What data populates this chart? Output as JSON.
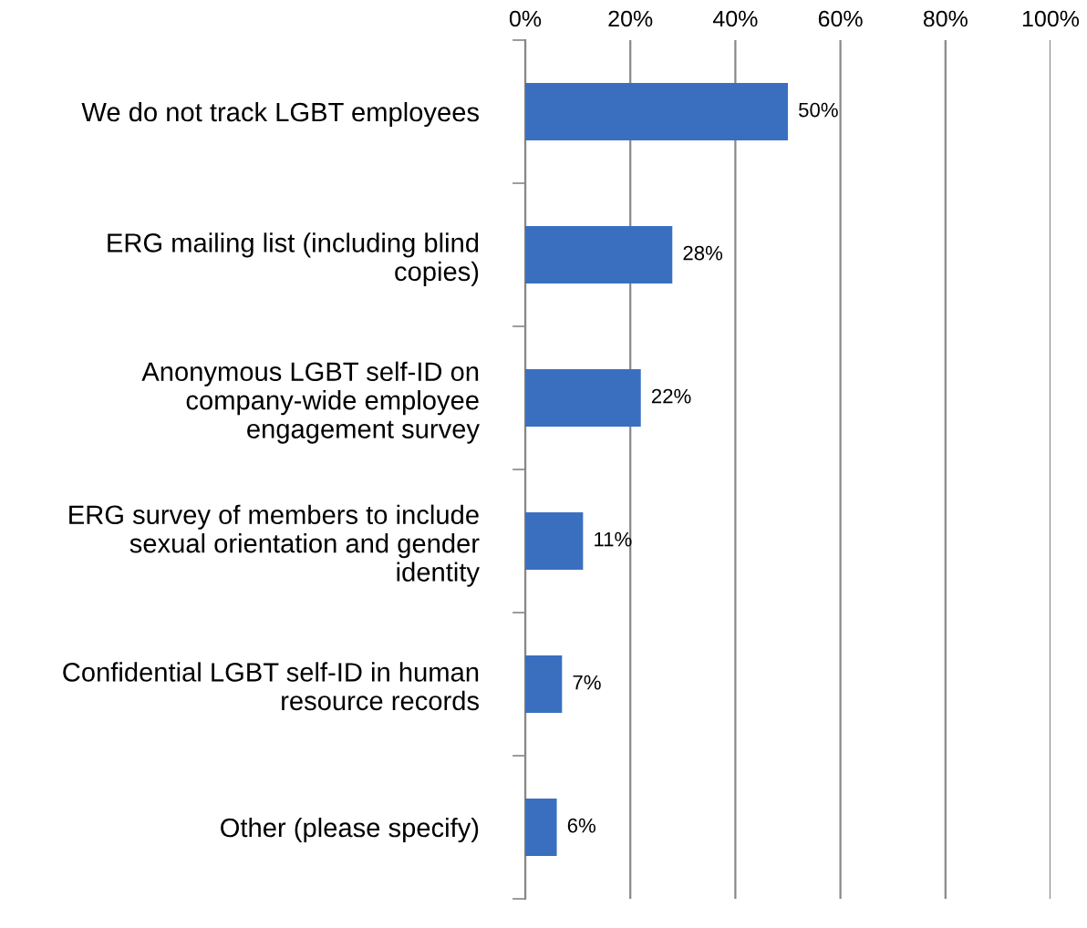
{
  "chart_data": {
    "type": "bar",
    "orientation": "horizontal",
    "categories": [
      "We do not track LGBT employees",
      "ERG mailing list (including blind\ncopies)",
      "Anonymous LGBT self-ID on\ncompany-wide employee\nengagement survey",
      "ERG survey of members to include\nsexual orientation and gender\nidentity",
      "Confidential LGBT self-ID in human\nresource records",
      "Other (please specify)"
    ],
    "values": [
      50,
      28,
      22,
      11,
      7,
      6
    ],
    "value_labels": [
      "50%",
      "28%",
      "22%",
      "11%",
      "7%",
      "6%"
    ],
    "color": "#3a6fc0",
    "xlim": [
      0,
      100
    ],
    "xticks": [
      {
        "value": 0,
        "label": "0%"
      },
      {
        "value": 20,
        "label": "20%"
      },
      {
        "value": 40,
        "label": "40%"
      },
      {
        "value": 60,
        "label": "60%"
      },
      {
        "value": 80,
        "label": "80%"
      },
      {
        "value": 100,
        "label": "100%"
      }
    ],
    "grid": "x",
    "legend": false
  }
}
